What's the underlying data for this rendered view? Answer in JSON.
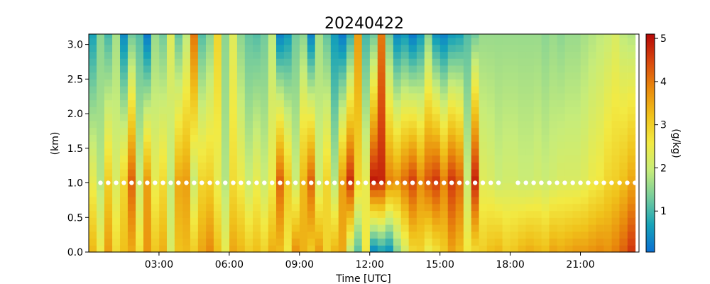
{
  "chart_data": {
    "type": "heatmap",
    "title": "20240422",
    "xlabel": "Time [UTC]",
    "ylabel": "(km)",
    "colorbar_label": "(g/kg)",
    "xlim": [
      0,
      23.5
    ],
    "ylim": [
      0,
      3.15
    ],
    "x_ticks": [
      {
        "value": 3,
        "label": "03:00"
      },
      {
        "value": 6,
        "label": "06:00"
      },
      {
        "value": 9,
        "label": "09:00"
      },
      {
        "value": 12,
        "label": "12:00"
      },
      {
        "value": 15,
        "label": "15:00"
      },
      {
        "value": 18,
        "label": "18:00"
      },
      {
        "value": 21,
        "label": "21:00"
      }
    ],
    "y_ticks": [
      {
        "value": 0.0,
        "label": "0.0"
      },
      {
        "value": 0.5,
        "label": "0.5"
      },
      {
        "value": 1.0,
        "label": "1.0"
      },
      {
        "value": 1.5,
        "label": "1.5"
      },
      {
        "value": 2.0,
        "label": "2.0"
      },
      {
        "value": 2.5,
        "label": "2.5"
      },
      {
        "value": 3.0,
        "label": "3.0"
      }
    ],
    "colorbar_ticks": [
      {
        "value": 1,
        "label": "1"
      },
      {
        "value": 2,
        "label": "2"
      },
      {
        "value": 3,
        "label": "3"
      },
      {
        "value": 4,
        "label": "4"
      },
      {
        "value": 5,
        "label": "5"
      }
    ],
    "vmin": 0.05,
    "vmax": 5.1,
    "colormap": [
      "#0a6fd2",
      "#17a3b8",
      "#75cc9c",
      "#c6ec7a",
      "#f2ea43",
      "#f0c21b",
      "#e98a0c",
      "#d8470e",
      "#b50707"
    ],
    "y_levels_km": [
      0.0,
      0.1,
      0.2,
      0.3,
      0.4,
      0.5,
      0.6,
      0.7,
      0.8,
      0.9,
      1.0,
      1.1,
      1.2,
      1.3,
      1.4,
      1.5,
      1.6,
      1.7,
      1.8,
      1.9,
      2.0,
      2.1,
      2.2,
      2.3,
      2.4,
      2.5,
      2.6,
      2.7,
      2.8,
      2.9,
      3.0,
      3.1
    ],
    "profile_times_utc": [
      0.17,
      0.5,
      0.83,
      1.17,
      1.5,
      1.83,
      2.17,
      2.5,
      2.83,
      3.17,
      3.5,
      3.83,
      4.17,
      4.5,
      4.83,
      5.17,
      5.5,
      5.83,
      6.17,
      6.5,
      6.83,
      7.17,
      7.5,
      7.83,
      8.17,
      8.5,
      8.83,
      9.17,
      9.5,
      9.83,
      10.17,
      10.5,
      10.83,
      11.17,
      11.5,
      11.83,
      12.17,
      12.5,
      12.83,
      13.17,
      13.5,
      13.83,
      14.17,
      14.5,
      14.83,
      15.17,
      15.5,
      15.83,
      16.17,
      16.5,
      16.83,
      17.17,
      17.5,
      17.83,
      18.17,
      18.5,
      18.83,
      19.17,
      19.5,
      19.83,
      20.17,
      20.5,
      20.83,
      21.17,
      21.5,
      21.83,
      22.17,
      22.5,
      22.83,
      23.17
    ],
    "profile_surface_gkg": [
      3.3,
      2.5,
      3.6,
      2.8,
      3.2,
      3.5,
      2.7,
      3.7,
      3.1,
      3.4,
      2.2,
      3.2,
      3.3,
      3.0,
      3.5,
      3.8,
      3.2,
      2.4,
      3.5,
      3.3,
      3.0,
      3.2,
      2.9,
      3.4,
      3.3,
      2.6,
      3.7,
      3.4,
      3.1,
      3.6,
      2.9,
      3.3,
      3.5,
      2.0,
      1.2,
      2.6,
      0.5,
      0.8,
      0.6,
      1.5,
      2.2,
      2.9,
      3.0,
      2.5,
      2.8,
      3.1,
      3.6,
      3.3,
      2.6,
      2.9,
      3.0,
      3.2,
      3.3,
      3.0,
      3.1,
      3.3,
      3.4,
      3.3,
      3.2,
      3.5,
      3.4,
      3.5,
      3.6,
      3.6,
      3.7,
      3.8,
      3.7,
      3.9,
      4.2,
      4.6
    ],
    "profile_1km_gkg": [
      2.4,
      1.8,
      3.0,
      2.2,
      2.9,
      4.2,
      2.0,
      3.6,
      2.4,
      2.8,
      1.9,
      3.5,
      3.6,
      2.0,
      2.9,
      3.0,
      2.4,
      1.8,
      2.8,
      2.5,
      2.0,
      2.4,
      2.0,
      2.5,
      4.2,
      3.1,
      2.0,
      3.3,
      4.2,
      2.1,
      2.9,
      1.8,
      3.6,
      4.7,
      2.9,
      2.4,
      4.9,
      4.8,
      3.9,
      3.7,
      4.1,
      4.5,
      3.8,
      4.3,
      4.6,
      3.9,
      4.6,
      4.2,
      2.0,
      4.8,
      2.3,
      2.2,
      2.0,
      2.1,
      2.1,
      2.0,
      2.0,
      2.1,
      2.0,
      2.1,
      2.2,
      2.2,
      2.2,
      2.3,
      2.5,
      2.6,
      2.9,
      3.0,
      3.2,
      3.5
    ],
    "profile_top_gkg": [
      0.7,
      1.5,
      1.0,
      1.7,
      0.4,
      1.3,
      1.1,
      0.2,
      1.6,
      1.3,
      2.3,
      1.2,
      1.9,
      4.0,
      1.1,
      1.5,
      2.9,
      1.5,
      2.3,
      1.5,
      1.2,
      1.1,
      1.3,
      1.9,
      0.3,
      0.6,
      1.3,
      1.5,
      0.3,
      1.7,
      1.2,
      0.6,
      0.2,
      0.9,
      3.6,
      1.0,
      1.3,
      4.0,
      1.3,
      0.4,
      0.6,
      0.2,
      0.6,
      1.5,
      0.5,
      0.3,
      0.6,
      0.7,
      1.1,
      1.3,
      1.6,
      1.6,
      1.6,
      1.6,
      1.6,
      1.6,
      1.6,
      1.6,
      1.5,
      1.6,
      1.5,
      1.6,
      1.6,
      1.7,
      1.8,
      1.9,
      2.0,
      2.2,
      1.9,
      1.8
    ],
    "marker_height_km": 1.0,
    "marker_times_utc": [
      0.5,
      0.83,
      1.17,
      1.5,
      1.83,
      2.17,
      2.5,
      2.83,
      3.17,
      3.5,
      3.83,
      4.17,
      4.5,
      4.83,
      5.17,
      5.5,
      5.83,
      6.17,
      6.5,
      6.83,
      7.17,
      7.5,
      7.83,
      8.17,
      8.5,
      8.83,
      9.17,
      9.5,
      9.83,
      10.17,
      10.5,
      10.83,
      11.17,
      11.5,
      11.83,
      12.17,
      12.5,
      12.83,
      13.17,
      13.5,
      13.83,
      14.17,
      14.5,
      14.83,
      15.17,
      15.5,
      15.83,
      16.17,
      16.5,
      16.83,
      17.17,
      17.5,
      18.33,
      18.67,
      19.0,
      19.33,
      19.67,
      20.0,
      20.33,
      20.67,
      21.0,
      21.33,
      21.67,
      22.0,
      22.33,
      22.67,
      23.0,
      23.33
    ],
    "marker_color": "#ffffff"
  }
}
